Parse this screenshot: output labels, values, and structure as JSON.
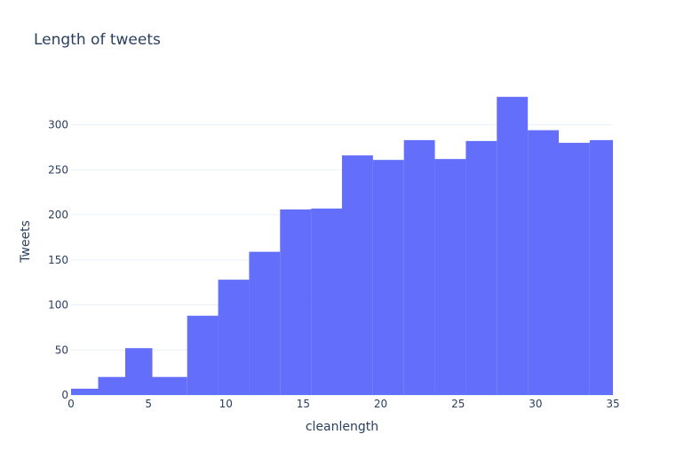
{
  "chart_data": {
    "type": "bar",
    "title": "Length of tweets",
    "xlabel": "cleanlength",
    "ylabel": "Tweets",
    "xlim": [
      0,
      35
    ],
    "ylim": [
      0,
      340
    ],
    "xticks": [
      0,
      5,
      10,
      15,
      20,
      25,
      30,
      35
    ],
    "yticks": [
      0,
      50,
      100,
      150,
      200,
      250,
      300
    ],
    "bar_color": "#636efa",
    "grid": true,
    "bins": [
      {
        "x0": 0,
        "x1": 1.75,
        "value": 7
      },
      {
        "x0": 1.75,
        "x1": 3.5,
        "value": 20
      },
      {
        "x0": 3.5,
        "x1": 5.25,
        "value": 52
      },
      {
        "x0": 5.25,
        "x1": 7.5,
        "value": 20
      },
      {
        "x0": 7.5,
        "x1": 9.5,
        "value": 88
      },
      {
        "x0": 9.5,
        "x1": 11.5,
        "value": 128
      },
      {
        "x0": 11.5,
        "x1": 13.5,
        "value": 159
      },
      {
        "x0": 13.5,
        "x1": 15.5,
        "value": 206
      },
      {
        "x0": 15.5,
        "x1": 17.5,
        "value": 207
      },
      {
        "x0": 17.5,
        "x1": 19.5,
        "value": 266
      },
      {
        "x0": 19.5,
        "x1": 21.5,
        "value": 261
      },
      {
        "x0": 21.5,
        "x1": 23.5,
        "value": 283
      },
      {
        "x0": 23.5,
        "x1": 25.5,
        "value": 262
      },
      {
        "x0": 25.5,
        "x1": 27.5,
        "value": 282
      },
      {
        "x0": 27.5,
        "x1": 29.5,
        "value": 331
      },
      {
        "x0": 29.5,
        "x1": 31.5,
        "value": 294
      },
      {
        "x0": 31.5,
        "x1": 33.5,
        "value": 280
      },
      {
        "x0": 33.5,
        "x1": 35,
        "value": 283
      }
    ]
  }
}
